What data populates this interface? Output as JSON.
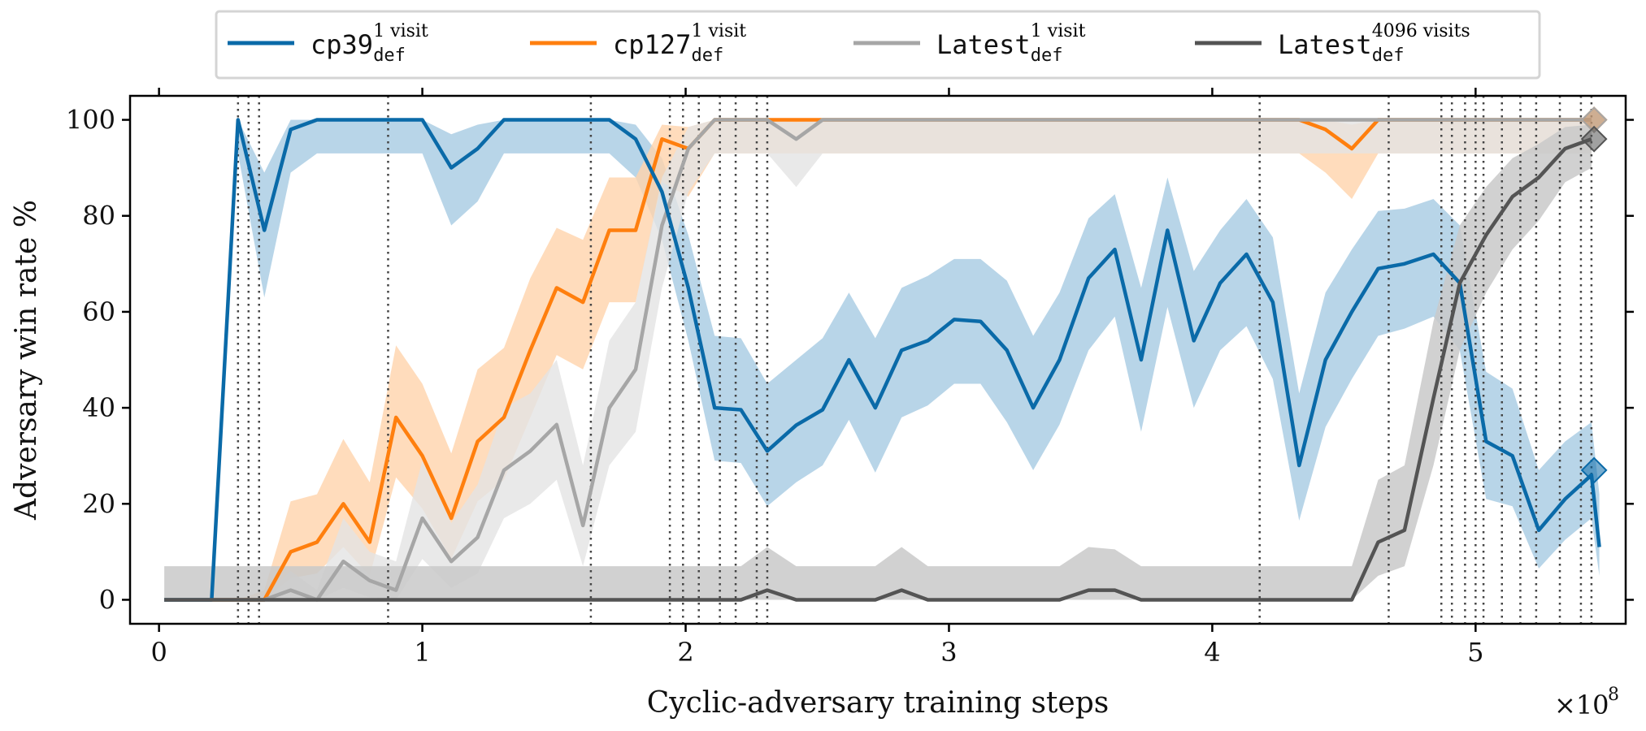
{
  "chart_data": {
    "type": "line",
    "xlabel": "Cyclic-adversary training steps",
    "ylabel": "Adversary win rate %",
    "x_multiplier_label": "×10",
    "x_multiplier_exp": "8",
    "xlim": [
      -0.11,
      5.57
    ],
    "ylim": [
      -5,
      105
    ],
    "x_ticks": [
      0,
      1,
      2,
      3,
      4,
      5
    ],
    "x_tick_labels": [
      "0",
      "1",
      "2",
      "3",
      "4",
      "5"
    ],
    "y_ticks": [
      0,
      20,
      40,
      60,
      80,
      100
    ],
    "y_tick_labels": [
      "0",
      "20",
      "40",
      "60",
      "80",
      "100"
    ],
    "legend_position": "top-center (outside)",
    "vlines": [
      0.3,
      0.34,
      0.38,
      0.87,
      1.64,
      1.94,
      1.99,
      2.05,
      2.13,
      2.19,
      2.27,
      2.31,
      4.18,
      4.67,
      4.87,
      4.91,
      4.96,
      5.0,
      5.03,
      5.1,
      5.17,
      5.23,
      5.32,
      5.4,
      5.44
    ],
    "series": [
      {
        "name": "cp39",
        "legend_main": "cp39",
        "legend_sup": "1 visit",
        "legend_sub": "def",
        "color": "#0a6aa8",
        "band_color": "#a6cbe2",
        "end_marker": {
          "x": 5.45,
          "y": 27
        },
        "x": [
          0.02,
          0.1,
          0.2,
          0.3,
          0.4,
          0.5,
          0.6,
          0.7,
          0.8,
          0.9,
          1.0,
          1.11,
          1.21,
          1.31,
          1.41,
          1.51,
          1.61,
          1.71,
          1.81,
          1.91,
          2.01,
          2.11,
          2.21,
          2.31,
          2.42,
          2.52,
          2.62,
          2.72,
          2.82,
          2.92,
          3.02,
          3.12,
          3.22,
          3.32,
          3.42,
          3.53,
          3.63,
          3.73,
          3.83,
          3.93,
          4.03,
          4.13,
          4.23,
          4.33,
          4.43,
          4.53,
          4.63,
          4.73,
          4.84,
          4.94,
          5.04,
          5.14,
          5.24,
          5.34,
          5.44,
          5.47
        ],
        "y": [
          0,
          0,
          0,
          100,
          77,
          98,
          100,
          100,
          100,
          100,
          100,
          90,
          94,
          100,
          100,
          100,
          100,
          100,
          96,
          85,
          65,
          40,
          39.6,
          31,
          36.4,
          39.6,
          50,
          40,
          52,
          54,
          58.4,
          58,
          52,
          40,
          50,
          67,
          73,
          50,
          77,
          54,
          66,
          72,
          62,
          28,
          50,
          60,
          69,
          70,
          72,
          66,
          33,
          30,
          14.5,
          21,
          26,
          11
        ],
        "lower": [
          0,
          0,
          0,
          93,
          63,
          89,
          93,
          93,
          93,
          93,
          93,
          78,
          83,
          93,
          93,
          93,
          93,
          93,
          88,
          75,
          54,
          29,
          28.5,
          19.5,
          24.5,
          28,
          37.5,
          26.5,
          38,
          40.5,
          45,
          45,
          37,
          27,
          36.5,
          52,
          59,
          35,
          61,
          40,
          52,
          57,
          46,
          16.5,
          36,
          46,
          55,
          56.5,
          59,
          52,
          21,
          19.5,
          6.5,
          12.5,
          17,
          5
        ],
        "upper": [
          0,
          0,
          0,
          100,
          89,
          100,
          100,
          100,
          100,
          100,
          100,
          97,
          99,
          100,
          100,
          100,
          100,
          100,
          99,
          92,
          76,
          55,
          54.5,
          45,
          50,
          54.5,
          64,
          54.5,
          65,
          67.5,
          71,
          71,
          66.5,
          55,
          64,
          79.5,
          84.5,
          65,
          88,
          68.5,
          77,
          83.5,
          75.5,
          43,
          64,
          73,
          81,
          81.5,
          83.5,
          78,
          47.5,
          44,
          27,
          33,
          37,
          22
        ]
      },
      {
        "name": "cp127",
        "legend_main": "cp127",
        "legend_sup": "1 visit",
        "legend_sub": "def",
        "color": "#ff7f0e",
        "band_color": "#ffd3ab",
        "end_marker": {
          "x": 5.45,
          "y": 100
        },
        "x": [
          0.02,
          0.1,
          0.2,
          0.3,
          0.4,
          0.5,
          0.6,
          0.7,
          0.8,
          0.9,
          1.0,
          1.11,
          1.21,
          1.31,
          1.41,
          1.51,
          1.61,
          1.71,
          1.81,
          1.91,
          2.01,
          2.11,
          2.21,
          2.31,
          2.42,
          2.52,
          2.62,
          2.72,
          2.82,
          2.92,
          3.02,
          3.12,
          3.22,
          3.32,
          3.42,
          3.53,
          3.63,
          3.73,
          3.83,
          3.93,
          4.03,
          4.13,
          4.23,
          4.33,
          4.43,
          4.53,
          4.63,
          4.73,
          4.84,
          4.94,
          5.04,
          5.14,
          5.24,
          5.34,
          5.44
        ],
        "y": [
          0,
          0,
          0,
          0,
          0,
          10,
          12,
          20,
          12,
          38,
          30,
          17,
          33,
          38,
          52,
          65,
          62,
          77,
          77,
          96,
          94,
          100,
          100,
          100,
          100,
          100,
          100,
          100,
          100,
          100,
          100,
          100,
          100,
          100,
          100,
          100,
          100,
          100,
          100,
          100,
          100,
          100,
          100,
          100,
          98,
          94,
          100,
          100,
          100,
          100,
          100,
          100,
          100,
          100,
          100
        ],
        "lower": [
          0,
          0,
          0,
          0,
          0,
          4.5,
          5.5,
          11,
          5,
          25.5,
          19,
          8.5,
          20.5,
          25,
          38,
          51,
          48,
          62,
          62,
          87,
          84,
          93,
          93,
          93,
          93,
          93,
          93,
          93,
          93,
          93,
          93,
          93,
          93,
          93,
          93,
          93,
          93,
          93,
          93,
          93,
          93,
          93,
          93,
          93,
          89,
          83.5,
          93,
          93,
          93,
          93,
          93,
          93,
          93,
          93,
          93
        ],
        "upper": [
          0,
          0,
          0,
          0,
          2,
          20.5,
          22,
          33.5,
          24.5,
          53,
          45,
          30.5,
          48,
          52.5,
          67,
          77.5,
          75,
          88,
          88,
          99,
          98.5,
          100,
          100,
          100,
          100,
          100,
          100,
          100,
          100,
          100,
          100,
          100,
          100,
          100,
          100,
          100,
          100,
          100,
          100,
          100,
          100,
          100,
          100,
          100,
          100,
          99,
          100,
          100,
          100,
          100,
          100,
          100,
          100,
          100,
          100
        ]
      },
      {
        "name": "Latest",
        "legend_main": "Latest",
        "legend_sup": "1 visit",
        "legend_sub": "def",
        "color": "#a6a6a6",
        "band_color": "#e3e3e3",
        "end_marker": {
          "x": 5.45,
          "y": 100
        },
        "x": [
          0.02,
          0.1,
          0.2,
          0.3,
          0.4,
          0.5,
          0.6,
          0.7,
          0.8,
          0.9,
          1.0,
          1.11,
          1.21,
          1.31,
          1.41,
          1.51,
          1.61,
          1.71,
          1.81,
          1.91,
          2.01,
          2.11,
          2.21,
          2.31,
          2.42,
          2.52,
          2.62,
          2.72,
          2.82,
          2.92,
          3.02,
          3.12,
          3.22,
          3.32,
          3.42,
          3.53,
          3.63,
          3.73,
          3.83,
          3.93,
          4.03,
          4.13,
          4.23,
          4.33,
          4.43,
          4.53,
          4.63,
          4.73,
          4.84,
          4.94,
          5.04,
          5.14,
          5.24,
          5.34,
          5.44
        ],
        "y": [
          0,
          0,
          0,
          0,
          0,
          2,
          0,
          8,
          4,
          2,
          17,
          8,
          13,
          27,
          31,
          36.5,
          15.5,
          40,
          48,
          78,
          94,
          100,
          100,
          100,
          96,
          100,
          100,
          100,
          100,
          100,
          100,
          100,
          100,
          100,
          100,
          100,
          100,
          100,
          100,
          100,
          100,
          100,
          100,
          100,
          100,
          100,
          100,
          100,
          100,
          100,
          100,
          100,
          100,
          100,
          100
        ],
        "lower": [
          0,
          0,
          0,
          0,
          0,
          0,
          0,
          2.5,
          0.5,
          0,
          8.5,
          2.5,
          5.5,
          17,
          20,
          25,
          7,
          28,
          35,
          65,
          85,
          93,
          93,
          93,
          86,
          93,
          93,
          93,
          93,
          93,
          93,
          93,
          93,
          93,
          93,
          93,
          93,
          93,
          93,
          93,
          93,
          93,
          93,
          93,
          93,
          93,
          93,
          93,
          93,
          93,
          93,
          93,
          93,
          93,
          93
        ],
        "upper": [
          0,
          0,
          0,
          0,
          1,
          6,
          2,
          17,
          10,
          8,
          29,
          16,
          24,
          40,
          43,
          50,
          28,
          54,
          62,
          88,
          98.5,
          100,
          100,
          100,
          99.5,
          100,
          100,
          100,
          100,
          100,
          100,
          100,
          100,
          100,
          100,
          100,
          100,
          100,
          100,
          100,
          100,
          100,
          100,
          100,
          100,
          100,
          100,
          100,
          100,
          100,
          100,
          100,
          100,
          100,
          100
        ]
      },
      {
        "name": "Latest",
        "legend_main": "Latest",
        "legend_sup": "4096 visits",
        "legend_sub": "def",
        "color": "#545454",
        "band_color": "#c9c9c9",
        "end_marker": {
          "x": 5.45,
          "y": 96
        },
        "x": [
          0.02,
          0.1,
          0.2,
          0.3,
          0.4,
          0.5,
          0.6,
          0.7,
          0.8,
          0.9,
          1.0,
          1.11,
          1.21,
          1.31,
          1.41,
          1.51,
          1.61,
          1.71,
          1.81,
          1.91,
          2.01,
          2.11,
          2.21,
          2.31,
          2.42,
          2.52,
          2.62,
          2.72,
          2.82,
          2.92,
          3.02,
          3.12,
          3.22,
          3.32,
          3.42,
          3.53,
          3.63,
          3.73,
          3.83,
          3.93,
          4.03,
          4.13,
          4.23,
          4.33,
          4.43,
          4.53,
          4.63,
          4.73,
          4.84,
          4.94,
          5.04,
          5.14,
          5.24,
          5.34,
          5.44
        ],
        "y": [
          0,
          0,
          0,
          0,
          0,
          0,
          0,
          0,
          0,
          0,
          0,
          0,
          0,
          0,
          0,
          0,
          0,
          0,
          0,
          0,
          0,
          0,
          0,
          2,
          0,
          0,
          0,
          0,
          2,
          0,
          0,
          0,
          0,
          0,
          0,
          2,
          2,
          0,
          0,
          0,
          0,
          0,
          0,
          0,
          0,
          0,
          12,
          14.5,
          42,
          66,
          76,
          84,
          88,
          94,
          96
        ],
        "lower": [
          0,
          0,
          0,
          0,
          0,
          0,
          0,
          0,
          0,
          0,
          0,
          0,
          0,
          0,
          0,
          0,
          0,
          0,
          0,
          0,
          0,
          0,
          0,
          0,
          0,
          0,
          0,
          0,
          0,
          0,
          0,
          0,
          0,
          0,
          0,
          0,
          0,
          0,
          0,
          0,
          0,
          0,
          0,
          0,
          0,
          0,
          5,
          7,
          28,
          52,
          64,
          73,
          79,
          87,
          90
        ],
        "upper": [
          7,
          7,
          7,
          7,
          7,
          7,
          7,
          7,
          7,
          7,
          7,
          7,
          7,
          7,
          7,
          7,
          7,
          7,
          7,
          7,
          7,
          7,
          7,
          11,
          7,
          7,
          7,
          7,
          11,
          7,
          7,
          7,
          7,
          7,
          7,
          11,
          10.5,
          7,
          7,
          7,
          7,
          7,
          7,
          7,
          7,
          7,
          25,
          28,
          58,
          78,
          86,
          92,
          95,
          98.5,
          99
        ]
      }
    ]
  }
}
